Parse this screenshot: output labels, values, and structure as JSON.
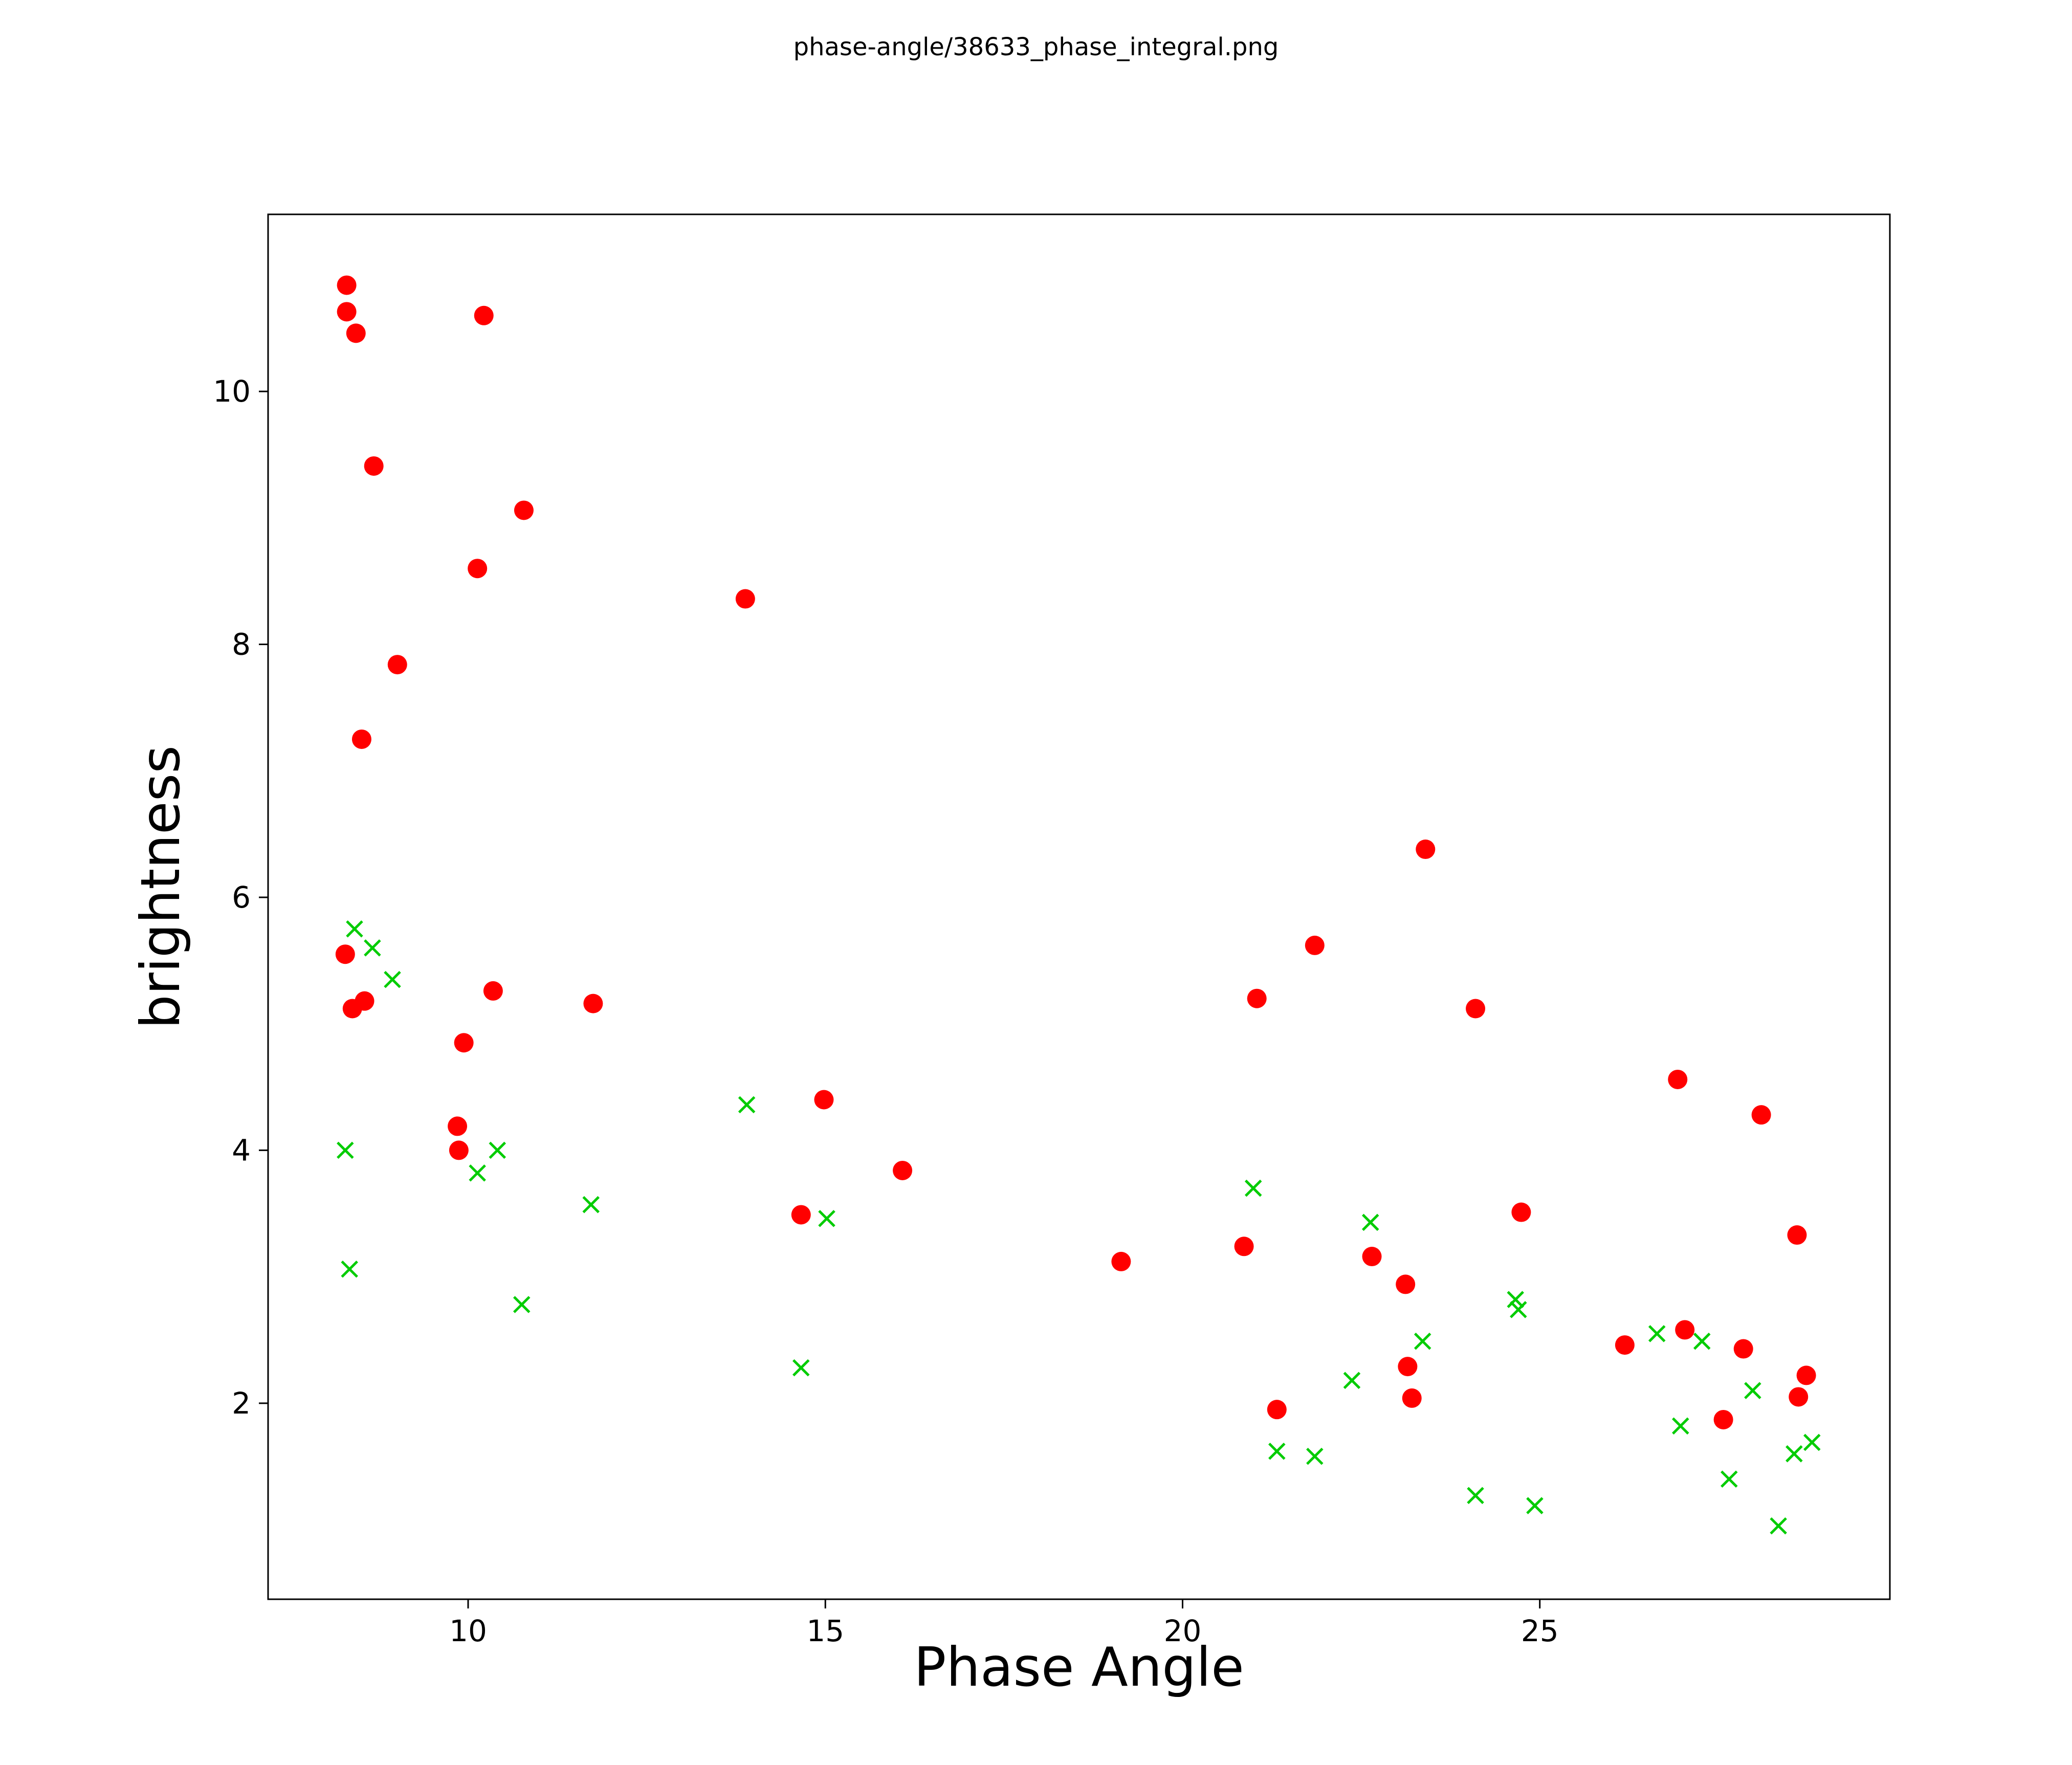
{
  "figure": {
    "background": "#ffffff"
  },
  "chart_data": {
    "type": "scatter",
    "title": "phase-angle/38633_phase_integral.png",
    "xlabel": "Phase Angle",
    "ylabel": "brightness",
    "xlim": [
      7.2,
      29.9
    ],
    "ylim": [
      0.45,
      11.4
    ],
    "xticks": [
      10,
      15,
      20,
      25
    ],
    "yticks": [
      2,
      4,
      6,
      8,
      10
    ],
    "grid": false,
    "legend_position": "none",
    "axis_color": "#000000",
    "series": [
      {
        "name": "red-circle-series",
        "marker": "circle",
        "color": "#ff0000",
        "points": [
          [
            8.3,
            10.84
          ],
          [
            8.3,
            10.63
          ],
          [
            8.43,
            10.46
          ],
          [
            8.68,
            9.41
          ],
          [
            10.22,
            10.6
          ],
          [
            10.78,
            9.06
          ],
          [
            10.13,
            8.6
          ],
          [
            13.88,
            8.36
          ],
          [
            9.01,
            7.84
          ],
          [
            8.51,
            7.25
          ],
          [
            23.4,
            6.38
          ],
          [
            21.85,
            5.62
          ],
          [
            8.28,
            5.55
          ],
          [
            21.04,
            5.2
          ],
          [
            10.35,
            5.26
          ],
          [
            11.75,
            5.16
          ],
          [
            8.38,
            5.12
          ],
          [
            8.55,
            5.18
          ],
          [
            24.1,
            5.12
          ],
          [
            9.94,
            4.85
          ],
          [
            14.98,
            4.4
          ],
          [
            26.93,
            4.56
          ],
          [
            28.1,
            4.28
          ],
          [
            9.85,
            4.19
          ],
          [
            9.87,
            4.0
          ],
          [
            16.08,
            3.84
          ],
          [
            14.66,
            3.49
          ],
          [
            28.6,
            3.33
          ],
          [
            24.74,
            3.51
          ],
          [
            19.14,
            3.12
          ],
          [
            20.86,
            3.24
          ],
          [
            22.65,
            3.16
          ],
          [
            23.12,
            2.94
          ],
          [
            27.03,
            2.58
          ],
          [
            26.19,
            2.46
          ],
          [
            27.85,
            2.43
          ],
          [
            23.15,
            2.29
          ],
          [
            28.73,
            2.22
          ],
          [
            23.21,
            2.04
          ],
          [
            28.62,
            2.05
          ],
          [
            21.32,
            1.95
          ],
          [
            27.57,
            1.87
          ]
        ]
      },
      {
        "name": "green-x-series",
        "marker": "x",
        "color": "#00cc00",
        "points": [
          [
            8.41,
            5.75
          ],
          [
            8.66,
            5.6
          ],
          [
            8.94,
            5.35
          ],
          [
            10.41,
            4.0
          ],
          [
            13.9,
            4.36
          ],
          [
            8.28,
            4.0
          ],
          [
            10.13,
            3.82
          ],
          [
            11.72,
            3.57
          ],
          [
            15.02,
            3.46
          ],
          [
            20.99,
            3.7
          ],
          [
            22.63,
            3.43
          ],
          [
            24.66,
            2.82
          ],
          [
            24.7,
            2.74
          ],
          [
            8.34,
            3.06
          ],
          [
            10.75,
            2.78
          ],
          [
            23.36,
            2.49
          ],
          [
            26.64,
            2.55
          ],
          [
            27.27,
            2.49
          ],
          [
            22.37,
            2.18
          ],
          [
            27.98,
            2.1
          ],
          [
            14.66,
            2.28
          ],
          [
            26.97,
            1.82
          ],
          [
            21.32,
            1.62
          ],
          [
            21.85,
            1.58
          ],
          [
            28.81,
            1.69
          ],
          [
            28.56,
            1.6
          ],
          [
            27.65,
            1.4
          ],
          [
            24.1,
            1.27
          ],
          [
            24.93,
            1.19
          ],
          [
            28.34,
            1.03
          ]
        ]
      }
    ]
  }
}
